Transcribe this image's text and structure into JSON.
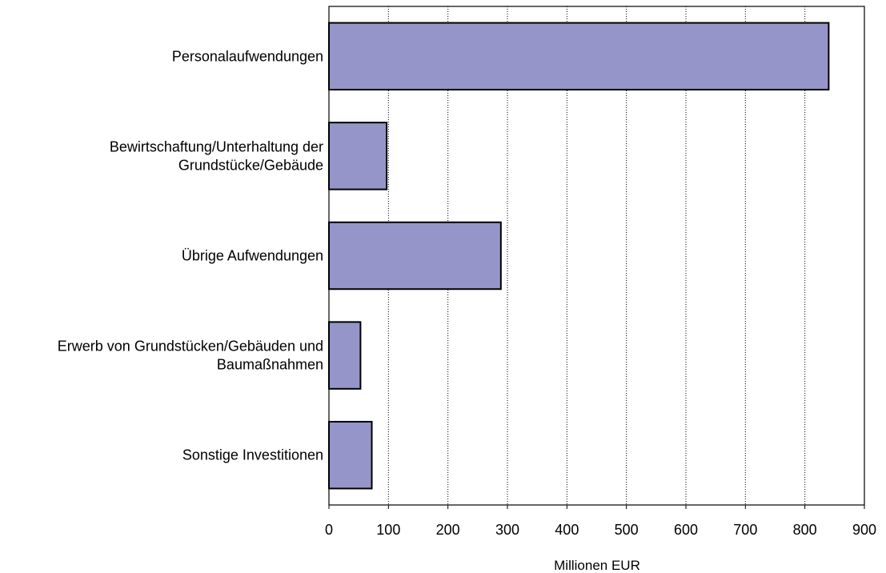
{
  "chart_data": {
    "type": "bar",
    "orientation": "horizontal",
    "title": "",
    "xlabel": "Millionen EUR",
    "ylabel": "",
    "xlim": [
      0,
      900
    ],
    "x_ticks": [
      0,
      100,
      200,
      300,
      400,
      500,
      600,
      700,
      800,
      900
    ],
    "grid": "vertical-dotted",
    "categories": [
      [
        "Personalaufwendungen"
      ],
      [
        "Bewirtschaftung/Unterhaltung der",
        "Grundstücke/Gebäude"
      ],
      [
        "Übrige Aufwendungen"
      ],
      [
        "Erwerb von Grundstücken/Gebäuden und",
        "Baumaßnahmen"
      ],
      [
        "Sonstige Investitionen"
      ]
    ],
    "values": [
      840,
      97,
      289,
      53,
      72
    ],
    "bar_color": "#9595c9",
    "bar_edge_color": "#000000"
  }
}
